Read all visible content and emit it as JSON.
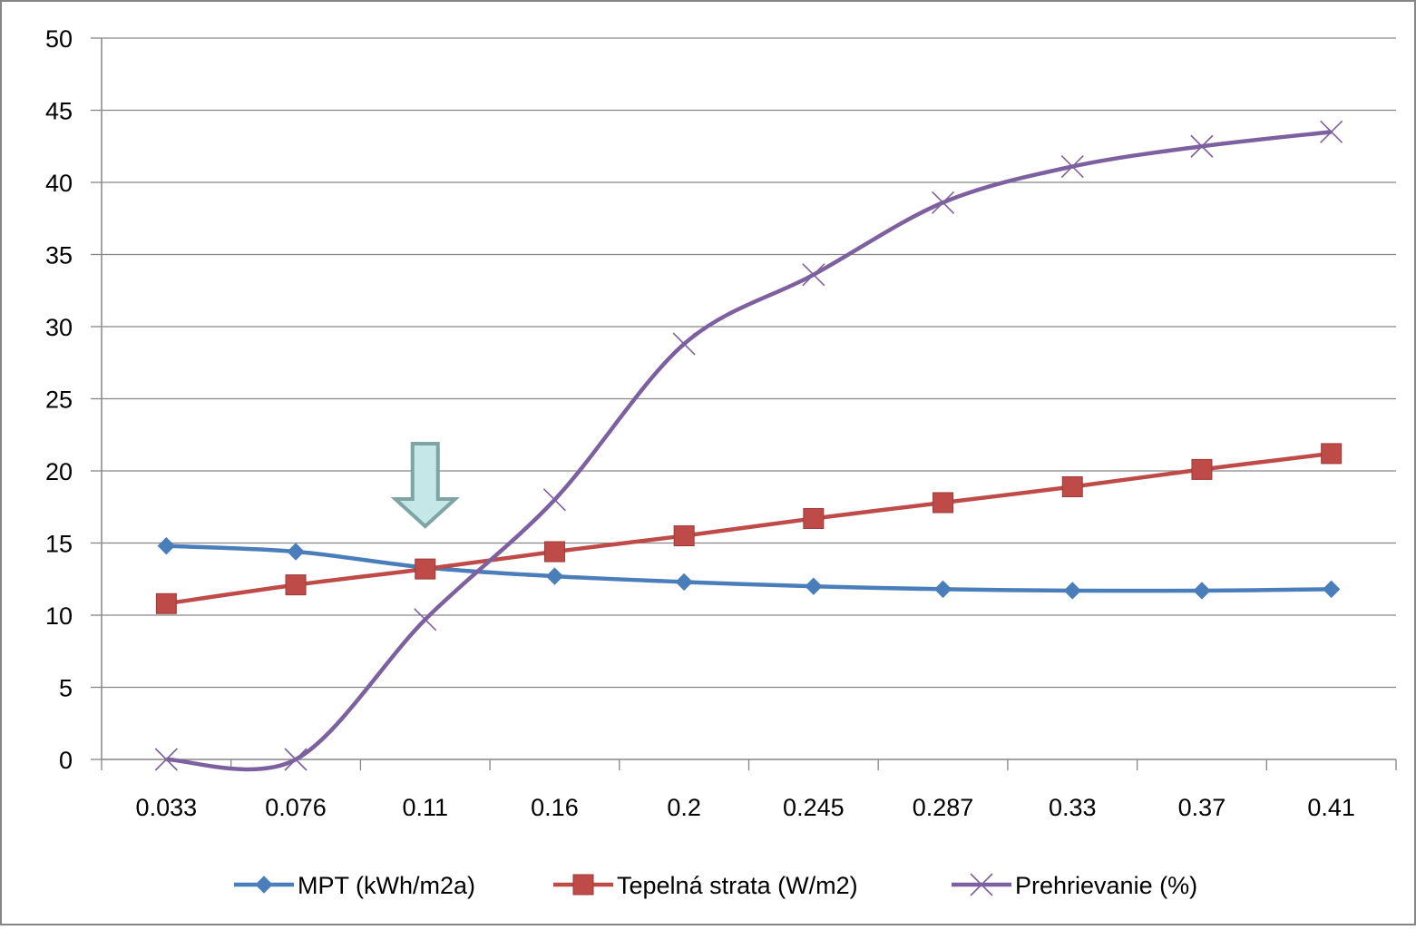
{
  "chart_data": {
    "type": "line",
    "title": "",
    "xlabel": "",
    "ylabel": "",
    "categories": [
      "0.033",
      "0.076",
      "0.11",
      "0.16",
      "0.2",
      "0.245",
      "0.287",
      "0.33",
      "0.37",
      "0.41"
    ],
    "ylim": [
      0,
      50
    ],
    "yticks": [
      "0",
      "5",
      "10",
      "15",
      "20",
      "25",
      "30",
      "35",
      "40",
      "45",
      "50"
    ],
    "grid": "horizontal",
    "legend_position": "bottom",
    "series": [
      {
        "name": "MPT (kWh/m2a)",
        "color": "#4a7ebb",
        "marker": "diamond",
        "values": [
          14.8,
          14.4,
          13.3,
          12.7,
          12.3,
          12.0,
          11.8,
          11.7,
          11.7,
          11.8
        ]
      },
      {
        "name": "Tepelná strata (W/m2)",
        "color": "#be4b48",
        "marker": "square",
        "values": [
          10.8,
          12.1,
          13.2,
          14.4,
          15.5,
          16.7,
          17.8,
          18.9,
          20.1,
          21.2
        ]
      },
      {
        "name": "Prehrievanie (%)",
        "color": "#7d60a0",
        "marker": "x",
        "values": [
          0,
          0,
          9.7,
          18.0,
          28.8,
          33.6,
          38.6,
          41.1,
          42.5,
          43.5
        ]
      }
    ],
    "annotations": [
      {
        "type": "arrow-down",
        "category": "0.11",
        "fill": "#c6e7e7",
        "stroke": "#7ea4a4"
      }
    ]
  }
}
